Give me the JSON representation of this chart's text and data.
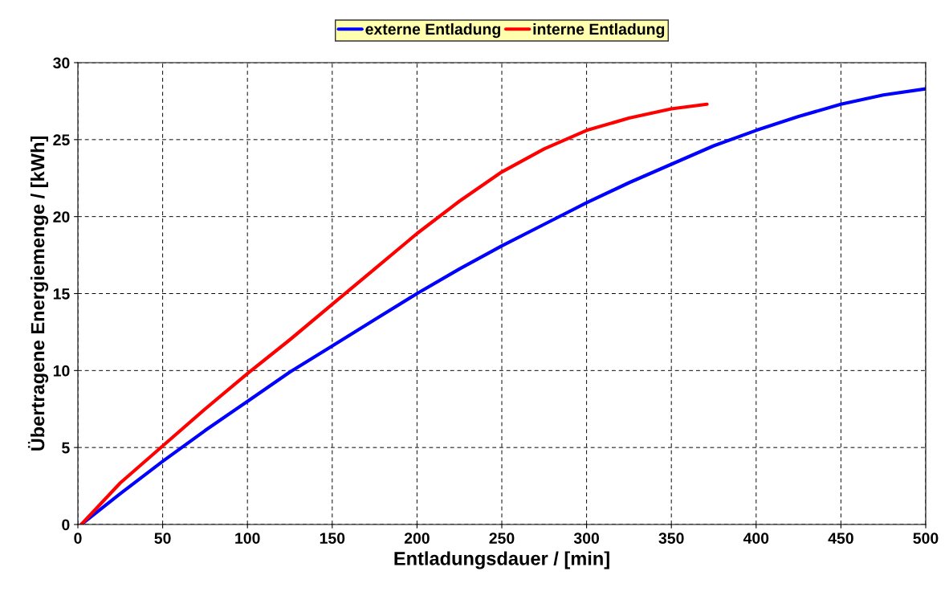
{
  "chart_data": {
    "type": "line",
    "xlabel": "Entladungsdauer / [min]",
    "ylabel": "Übertragene Energiemenge / [kWh]",
    "xlim": [
      0,
      500
    ],
    "xticks": [
      0,
      50,
      100,
      150,
      200,
      250,
      300,
      350,
      400,
      450,
      500
    ],
    "ylim": [
      0,
      30
    ],
    "yticks": [
      0,
      5,
      10,
      15,
      20,
      25,
      30
    ],
    "grid": true,
    "legend": "top",
    "marker": "none",
    "line_style": "solid",
    "series": [
      {
        "name": "externe Entladung",
        "color": "#0000ff",
        "x": [
          2,
          25,
          50,
          75,
          100,
          125,
          150,
          175,
          200,
          225,
          250,
          275,
          300,
          325,
          350,
          375,
          400,
          425,
          450,
          475,
          500
        ],
        "values": [
          0,
          2.0,
          4.1,
          6.1,
          8.0,
          9.9,
          11.6,
          13.3,
          15.0,
          16.6,
          18.1,
          19.5,
          20.9,
          22.2,
          23.4,
          24.6,
          25.6,
          26.5,
          27.3,
          27.9,
          28.3
        ]
      },
      {
        "name": "interne Entladung",
        "color": "#ff0000",
        "x": [
          2,
          25,
          50,
          75,
          100,
          125,
          150,
          175,
          200,
          225,
          250,
          275,
          300,
          325,
          350,
          371
        ],
        "values": [
          0,
          2.7,
          5.1,
          7.5,
          9.8,
          12.0,
          14.3,
          16.6,
          18.9,
          21.0,
          22.9,
          24.4,
          25.6,
          26.4,
          27.0,
          27.3
        ]
      }
    ]
  }
}
